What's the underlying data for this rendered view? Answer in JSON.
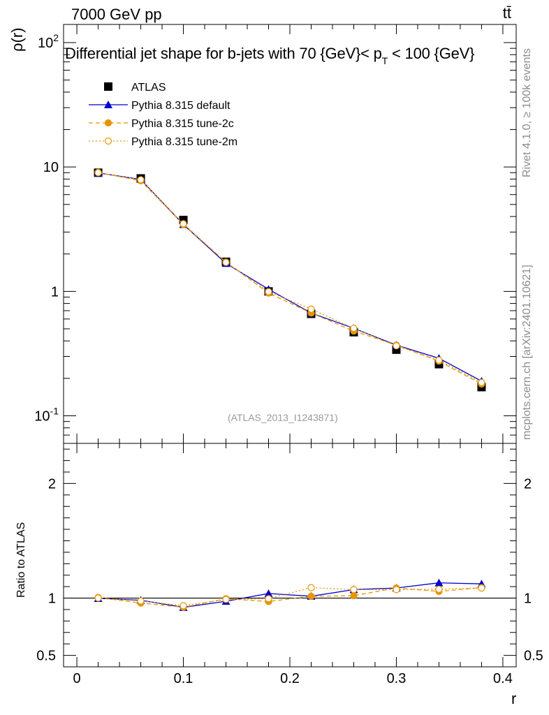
{
  "header": {
    "energy_label": "7000 GeV pp",
    "process_label": "tt̄"
  },
  "side_labels": {
    "rivet": "Rivet 4.1.0, ≥ 100k events",
    "mcplots": "mcplots.cern.ch [arXiv:2401.10621]"
  },
  "chart_data": {
    "type": "line",
    "title": "Differential jet shape for b-jets with 70 {GeV}< p_T < 100 {GeV}",
    "analysis_tag": "(ATLAS_2013_I1243871)",
    "xlabel": "r",
    "ylabel": "ρ(r)",
    "ratio_ylabel": "Ratio to ATLAS",
    "xlim": [
      -0.0125,
      0.4125
    ],
    "ylim_log": [
      0.06,
      140
    ],
    "ratio_ylim": [
      0.4,
      2.35
    ],
    "x_ticks": [
      "0",
      "0.1",
      "0.2",
      "0.3",
      "0.4"
    ],
    "y_ticks": [
      "10^-1",
      "1",
      "10",
      "10^2"
    ],
    "ratio_ticks": [
      "0.5",
      "1",
      "2"
    ],
    "x": [
      0.02,
      0.06,
      0.1,
      0.14,
      0.18,
      0.22,
      0.26,
      0.3,
      0.34,
      0.38
    ],
    "data": {
      "name": "ATLAS",
      "values": [
        9.0,
        8.1,
        3.75,
        1.73,
        1.0,
        0.66,
        0.47,
        0.34,
        0.26,
        0.17
      ]
    },
    "series": [
      {
        "name": "Pythia 8.315 default",
        "color": "#0000cc",
        "values": [
          8.97,
          7.95,
          3.45,
          1.68,
          1.04,
          0.67,
          0.505,
          0.37,
          0.29,
          0.19
        ],
        "ratio": [
          0.997,
          0.981,
          0.919,
          0.972,
          1.04,
          1.016,
          1.074,
          1.088,
          1.133,
          1.124
        ]
      },
      {
        "name": "Pythia 8.315 tune-2c",
        "color": "#e69500",
        "values": [
          9.05,
          7.75,
          3.45,
          1.72,
          0.97,
          0.67,
          0.48,
          0.37,
          0.275,
          0.18
        ],
        "ratio": [
          1.005,
          0.957,
          0.92,
          0.994,
          0.97,
          1.015,
          1.021,
          1.088,
          1.058,
          1.091
        ]
      },
      {
        "name": "Pythia 8.315 tune-2m",
        "color": "#e69500",
        "values": [
          9.0,
          7.9,
          3.5,
          1.71,
          0.995,
          0.72,
          0.505,
          0.365,
          0.28,
          0.185
        ],
        "ratio": [
          1.0,
          0.975,
          0.933,
          0.988,
          0.995,
          1.091,
          1.074,
          1.074,
          1.077,
          1.088
        ]
      }
    ],
    "legend": [
      "ATLAS",
      "Pythia 8.315 default",
      "Pythia 8.315 tune-2c",
      "Pythia 8.315 tune-2m"
    ]
  }
}
